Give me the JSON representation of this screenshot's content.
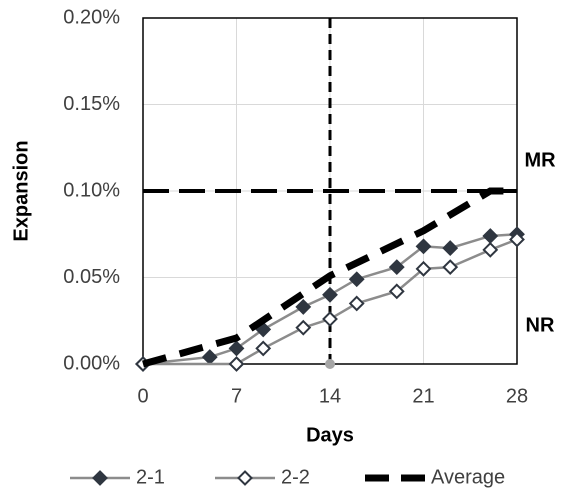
{
  "chart_data": {
    "type": "line",
    "x_label": "Days",
    "y_label": "Expansion",
    "xlim": [
      0,
      28
    ],
    "xticks": [
      0,
      7,
      14,
      21,
      28
    ],
    "ylim": [
      0,
      0.2
    ],
    "yticks": [
      {
        "value": 0,
        "label": "0.00%"
      },
      {
        "value": 0.05,
        "label": "0.05%"
      },
      {
        "value": 0.1,
        "label": "0.10%"
      },
      {
        "value": 0.15,
        "label": "0.15%"
      },
      {
        "value": 0.2,
        "label": "0.20%"
      }
    ],
    "grid": true,
    "legend": "bottom",
    "hline": {
      "value": 0.1,
      "label": "MR"
    },
    "vline": 14,
    "region_label": "NR",
    "series": [
      {
        "name": "2-1",
        "color": "#8c8c8c",
        "marker_color": "#2f3640",
        "marker": "filled",
        "dash": false,
        "x": [
          0,
          5,
          7,
          9,
          12,
          14,
          16,
          19,
          21,
          23,
          26,
          28
        ],
        "values": [
          0,
          0.004,
          0.009,
          0.02,
          0.033,
          0.04,
          0.049,
          0.056,
          0.068,
          0.067,
          0.074,
          0.075
        ]
      },
      {
        "name": "2-2",
        "color": "#8c8c8c",
        "marker_color": "#2f3640",
        "marker": "open",
        "dash": false,
        "x": [
          0,
          7,
          9,
          12,
          14,
          16,
          19,
          21,
          23,
          26,
          28
        ],
        "values": [
          0,
          0,
          0.009,
          0.021,
          0.026,
          0.035,
          0.042,
          0.055,
          0.056,
          0.066,
          0.072
        ]
      },
      {
        "name": "Average",
        "color": "#000000",
        "marker_color": "#000000",
        "marker": "none",
        "dash": true,
        "x": [
          0,
          7,
          14,
          21,
          26,
          28
        ],
        "values": [
          0,
          0.015,
          0.051,
          0.077,
          0.1,
          0.1
        ]
      }
    ]
  }
}
